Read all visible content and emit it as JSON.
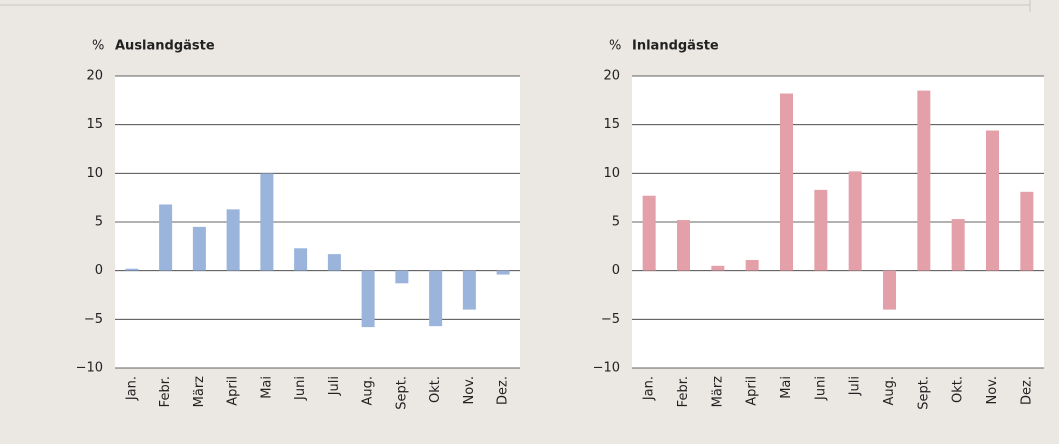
{
  "chart_data": [
    {
      "type": "bar",
      "title": "Auslandgäste",
      "y_label": "%",
      "categories": [
        "Jan.",
        "Febr.",
        "März",
        "April",
        "Mai",
        "Juni",
        "Juli",
        "Aug.",
        "Sept.",
        "Okt.",
        "Nov.",
        "Dez."
      ],
      "values": [
        0.2,
        6.8,
        4.5,
        6.3,
        10.0,
        2.3,
        1.7,
        -5.8,
        -1.3,
        -5.7,
        -4.0,
        -0.4
      ],
      "color": "#9ab4dc",
      "ylim": [
        -10,
        20
      ],
      "yticks": [
        {
          "value": -10,
          "label": "−10"
        },
        {
          "value": -5,
          "label": "−5"
        },
        0,
        5,
        10,
        15,
        20
      ],
      "grid": true
    },
    {
      "type": "bar",
      "title": "Inlandgäste",
      "y_label": "%",
      "categories": [
        "Jan.",
        "Febr.",
        "März",
        "April",
        "Mai",
        "Juni",
        "Juli",
        "Aug.",
        "Sept.",
        "Okt.",
        "Nov.",
        "Dez."
      ],
      "values": [
        7.7,
        5.2,
        0.5,
        1.1,
        18.2,
        8.3,
        10.2,
        -4.0,
        18.5,
        5.3,
        14.4,
        8.1
      ],
      "color": "#e3a0a8",
      "ylim": [
        -10,
        20
      ],
      "yticks": [
        {
          "value": -10,
          "label": "−10"
        },
        {
          "value": -5,
          "label": "−5"
        },
        0,
        5,
        10,
        15,
        20
      ],
      "grid": true
    }
  ]
}
